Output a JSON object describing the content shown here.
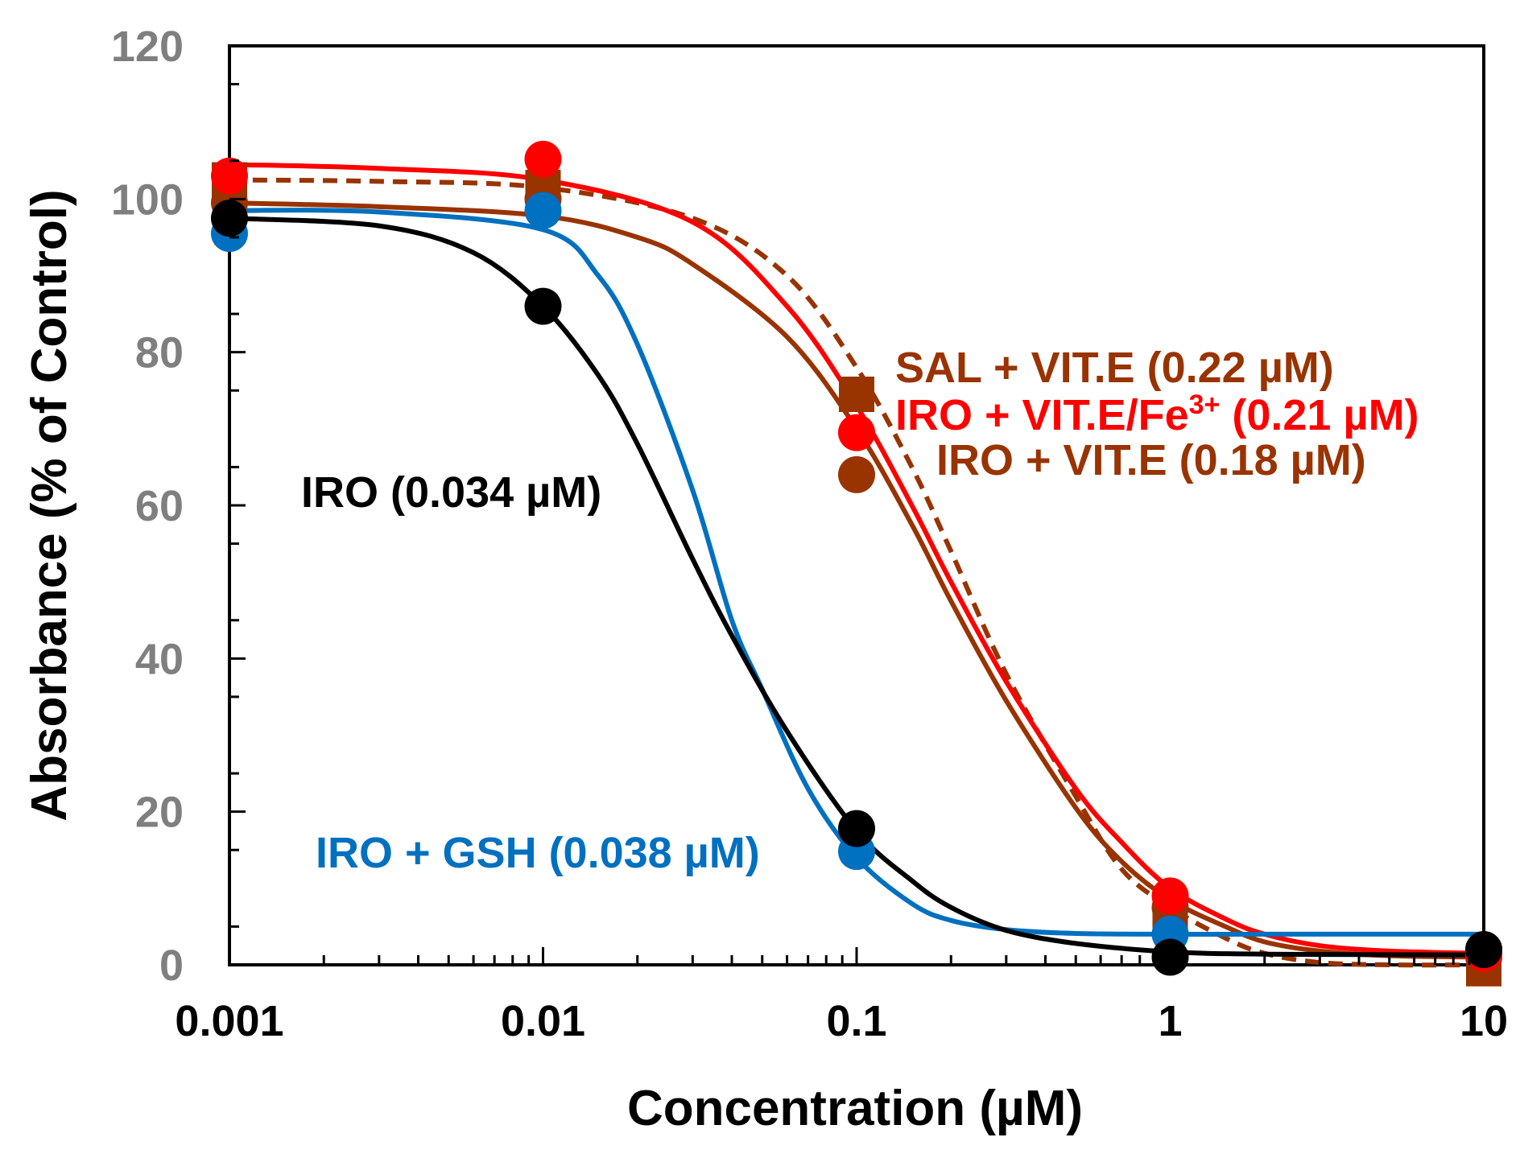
{
  "chart_data": {
    "type": "scatter",
    "x_scale": "log",
    "xlim": [
      0.001,
      10
    ],
    "ylim": [
      0,
      120
    ],
    "xlabel": "Concentration (µM)",
    "ylabel": "Absorbance (% of Control)",
    "x_ticks": [
      0.001,
      0.01,
      0.1,
      1,
      10
    ],
    "x_tick_labels": [
      "0.001",
      "0.01",
      "0.1",
      "1",
      "10"
    ],
    "y_ticks": [
      0,
      20,
      40,
      60,
      80,
      100,
      120
    ],
    "y_tick_labels": [
      "0",
      "20",
      "40",
      "60",
      "80",
      "100",
      "120"
    ],
    "grid": false,
    "legend": "none",
    "series": [
      {
        "name": "SAL + VIT.E",
        "color": "#993300",
        "marker": "square",
        "line_style": "dashed",
        "ic50": 0.22,
        "points": [
          [
            0.001,
            102.5
          ],
          [
            0.01,
            101.5
          ],
          [
            0.1,
            74.5
          ],
          [
            1,
            7.0
          ],
          [
            10,
            -0.5
          ]
        ],
        "curve": [
          [
            0.001,
            102.5
          ],
          [
            0.003,
            102.3
          ],
          [
            0.01,
            101.5
          ],
          [
            0.03,
            97.5
          ],
          [
            0.06,
            90.0
          ],
          [
            0.1,
            78.0
          ],
          [
            0.15,
            65.0
          ],
          [
            0.2,
            54.0
          ],
          [
            0.3,
            38.0
          ],
          [
            0.5,
            22.0
          ],
          [
            0.7,
            12.5
          ],
          [
            1,
            7.5
          ],
          [
            1.5,
            3.5
          ],
          [
            2,
            1.5
          ],
          [
            3,
            0.3
          ],
          [
            5,
            0.0
          ],
          [
            10,
            0.0
          ]
        ]
      },
      {
        "name": "IRO + VIT.E/Fe³⁺",
        "color": "#ff0000",
        "marker": "circle",
        "line_style": "solid",
        "ic50": 0.21,
        "points": [
          [
            0.001,
            103.0
          ],
          [
            0.01,
            105.2
          ],
          [
            0.1,
            69.5
          ],
          [
            1,
            9.0
          ],
          [
            10,
            1.5
          ]
        ],
        "curve": [
          [
            0.001,
            104.5
          ],
          [
            0.003,
            104.0
          ],
          [
            0.01,
            102.5
          ],
          [
            0.03,
            97.0
          ],
          [
            0.06,
            86.0
          ],
          [
            0.1,
            73.0
          ],
          [
            0.15,
            60.0
          ],
          [
            0.2,
            50.0
          ],
          [
            0.3,
            37.0
          ],
          [
            0.5,
            23.0
          ],
          [
            0.7,
            16.0
          ],
          [
            1,
            10.0
          ],
          [
            1.5,
            6.0
          ],
          [
            2,
            4.0
          ],
          [
            3,
            2.5
          ],
          [
            5,
            1.8
          ],
          [
            10,
            1.5
          ]
        ]
      },
      {
        "name": "IRO + VIT.E",
        "color": "#993300",
        "marker": "circle",
        "line_style": "solid",
        "ic50": 0.18,
        "points": [
          [
            0.001,
            99.5
          ],
          [
            0.01,
            100.0
          ],
          [
            0.1,
            64.0
          ],
          [
            1,
            7.5
          ],
          [
            10,
            1.0
          ]
        ],
        "curve": [
          [
            0.001,
            99.5
          ],
          [
            0.003,
            99.0
          ],
          [
            0.01,
            97.8
          ],
          [
            0.02,
            95.0
          ],
          [
            0.03,
            91.5
          ],
          [
            0.06,
            82.0
          ],
          [
            0.1,
            70.0
          ],
          [
            0.15,
            57.5
          ],
          [
            0.2,
            47.5
          ],
          [
            0.3,
            34.5
          ],
          [
            0.5,
            20.5
          ],
          [
            0.7,
            13.5
          ],
          [
            1,
            8.5
          ],
          [
            1.5,
            5.0
          ],
          [
            2,
            3.0
          ],
          [
            3,
            1.8
          ],
          [
            5,
            1.2
          ],
          [
            10,
            1.0
          ]
        ]
      },
      {
        "name": "IRO + GSH",
        "color": "#0070c0",
        "marker": "circle",
        "line_style": "solid",
        "ic50": 0.038,
        "points": [
          [
            0.001,
            95.5
          ],
          [
            0.01,
            98.5
          ],
          [
            0.1,
            14.8
          ],
          [
            1,
            4.0
          ],
          [
            10,
            2.0
          ]
        ],
        "curve": [
          [
            0.001,
            98.5
          ],
          [
            0.003,
            98.3
          ],
          [
            0.01,
            96.0
          ],
          [
            0.015,
            90.0
          ],
          [
            0.02,
            81.0
          ],
          [
            0.03,
            62.0
          ],
          [
            0.04,
            45.0
          ],
          [
            0.05,
            36.0
          ],
          [
            0.07,
            23.0
          ],
          [
            0.1,
            14.0
          ],
          [
            0.15,
            8.0
          ],
          [
            0.2,
            5.8
          ],
          [
            0.3,
            4.6
          ],
          [
            0.5,
            4.1
          ],
          [
            1,
            4.0
          ],
          [
            2,
            4.0
          ],
          [
            10,
            4.0
          ]
        ]
      },
      {
        "name": "IRO",
        "color": "#000000",
        "marker": "circle",
        "line_style": "solid",
        "ic50": 0.034,
        "points": [
          [
            0.001,
            97.5
          ],
          [
            0.01,
            86.0
          ],
          [
            0.1,
            17.8
          ],
          [
            1,
            1.0
          ],
          [
            10,
            2.0
          ]
        ],
        "curve": [
          [
            0.001,
            97.5
          ],
          [
            0.003,
            96.5
          ],
          [
            0.006,
            93.0
          ],
          [
            0.01,
            86.0
          ],
          [
            0.015,
            77.0
          ],
          [
            0.02,
            68.0
          ],
          [
            0.03,
            53.0
          ],
          [
            0.04,
            43.0
          ],
          [
            0.06,
            30.5
          ],
          [
            0.1,
            17.5
          ],
          [
            0.15,
            11.0
          ],
          [
            0.2,
            7.5
          ],
          [
            0.3,
            4.5
          ],
          [
            0.5,
            2.8
          ],
          [
            1,
            1.7
          ],
          [
            2,
            1.4
          ],
          [
            10,
            1.3
          ]
        ]
      }
    ],
    "annotations": [
      {
        "text": "SAL + VIT.E (0.22 µM)",
        "color": "#993300"
      },
      {
        "text": "IRO + VIT.E/Fe",
        "sup": "3+",
        "suffix": " (0.21 µM)",
        "color": "#ff0000"
      },
      {
        "text": "IRO + VIT.E (0.18 µM)",
        "color": "#993300"
      },
      {
        "text": "IRO (0.034 µM)",
        "color": "#000000"
      },
      {
        "text": "IRO + GSH  (0.038 µM)",
        "color": "#0070c0"
      }
    ]
  }
}
